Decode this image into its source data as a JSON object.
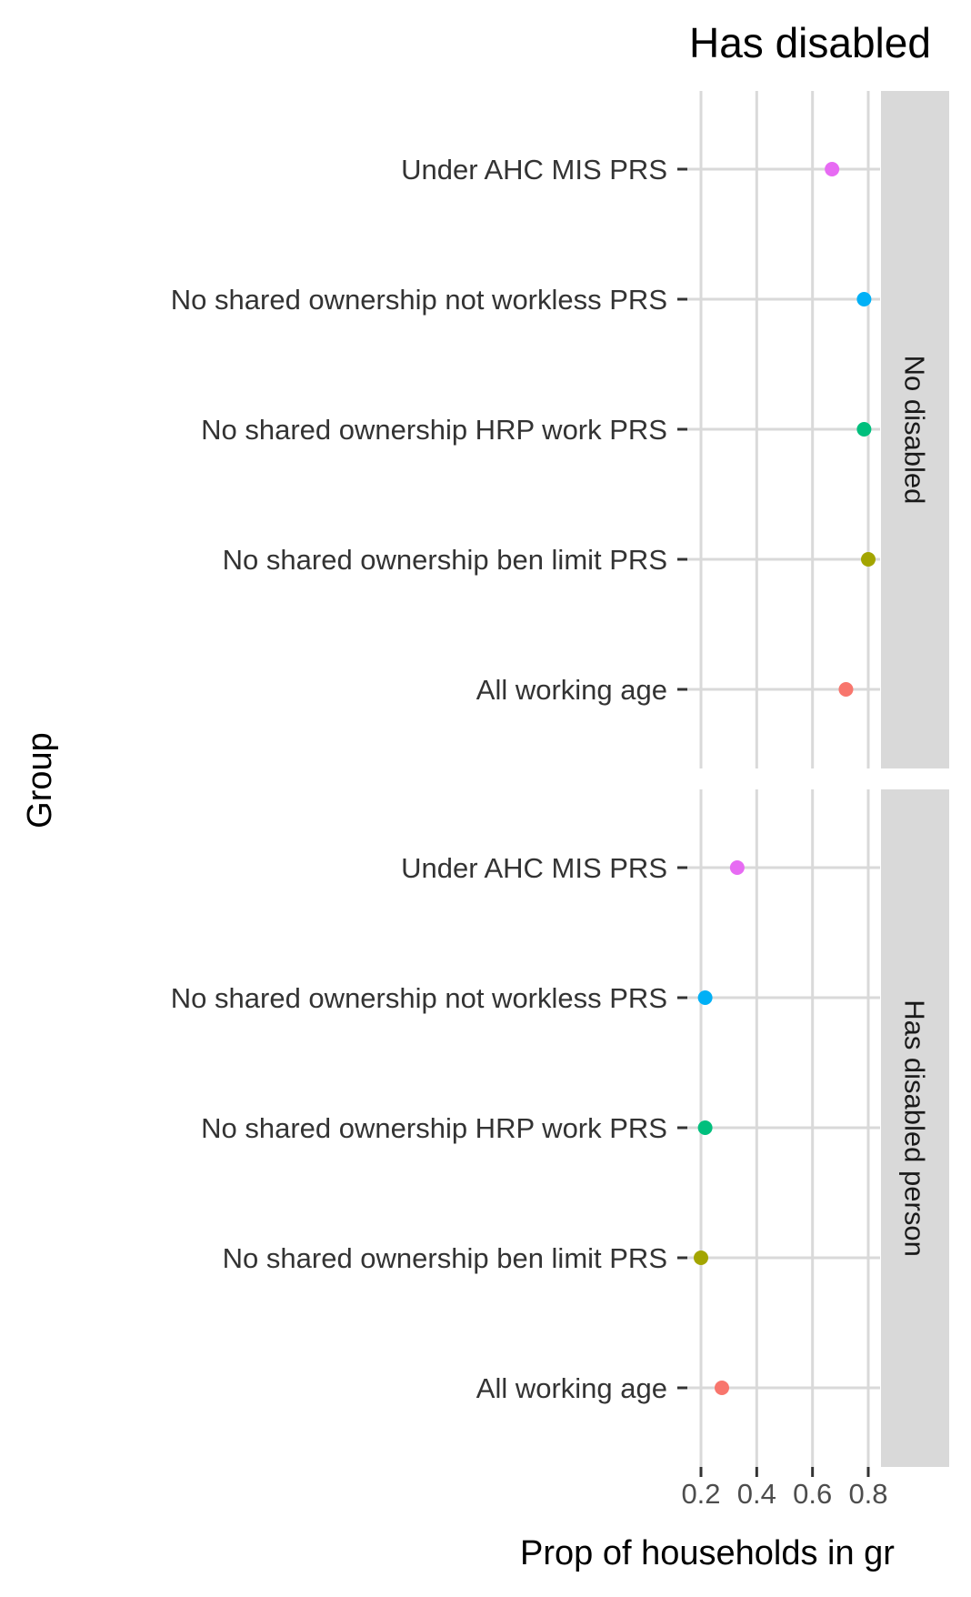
{
  "chart_data": {
    "type": "scatter",
    "title": "Has disabled",
    "xlabel": "Prop of households in gr",
    "ylabel": "Group",
    "xlim": [
      0.2,
      0.8
    ],
    "x_ticks": [
      "0.2",
      "0.4",
      "0.6",
      "0.8"
    ],
    "grid": true,
    "legend": "none",
    "categories": [
      "Under AHC MIS PRS",
      "No shared ownership not workless PRS",
      "No shared ownership HRP work PRS",
      "No shared ownership ben limit PRS",
      "All working age"
    ],
    "colors": [
      "#E76BF3",
      "#00B0F6",
      "#00BF7D",
      "#A3A500",
      "#F8766D"
    ],
    "panels": [
      {
        "strip": "No disabled",
        "values": [
          0.67,
          0.785,
          0.785,
          0.8,
          0.72
        ]
      },
      {
        "strip": "Has disabled person",
        "values": [
          0.33,
          0.215,
          0.215,
          0.2,
          0.275
        ]
      }
    ]
  }
}
